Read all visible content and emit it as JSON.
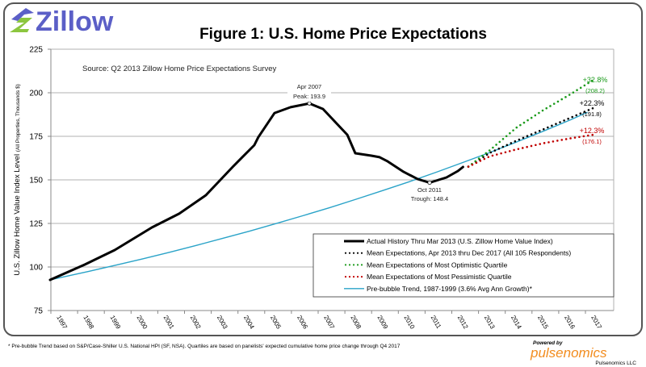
{
  "logo": {
    "text": "Zillow",
    "colors": {
      "blue": "#5b5fc7",
      "green": "#8cc63f"
    }
  },
  "footnote": "* Pre-bubble Trend based on S&P/Case-Shiller U.S. National HPI (SF, NSA).  Quartiles are based on panelists' expected cumulative home price change through Q4 2017",
  "powered": {
    "by": "Powered by",
    "brand": "pulsenomics",
    "company": "Pulsenomics LLC"
  },
  "chart_data": {
    "type": "line",
    "title": "Figure 1: U.S. Home Price Expectations",
    "source": "Source: Q2 2013 Zillow Home Price Expectations Survey",
    "ylabel": "U.S. Zillow Home Value Index Level",
    "ylabel_units": "(All Properties, Thousands $)",
    "ylim": [
      75,
      225
    ],
    "yticks": [
      75,
      100,
      125,
      150,
      175,
      200,
      225
    ],
    "xticks": [
      "1997",
      "1998",
      "1999",
      "2000",
      "2001",
      "2002",
      "2003",
      "2004",
      "2005",
      "2006",
      "2007",
      "2008",
      "2009",
      "2010",
      "2011",
      "2012",
      "2013",
      "2014",
      "2015",
      "2016",
      "2017"
    ],
    "grid": true,
    "legend_position": "bottom-right",
    "series": [
      {
        "name": "Actual History Thru Mar 2013  (U.S. Zillow Home Value Index)",
        "color": "#000000",
        "style": "solid",
        "x": [
          1997.55,
          1998.85,
          1999.97,
          2001.36,
          2002.38,
          2003.38,
          2004.38,
          2004.74,
          2005.19,
          2005.34,
          2005.95,
          2006.55,
          2007.25,
          2007.76,
          2008.27,
          2008.67,
          2008.97,
          2009.57,
          2009.88,
          2010.18,
          2010.78,
          2011.3,
          2011.75,
          2012.38,
          2012.81,
          2013.0
        ],
        "y": [
          92.6,
          101.4,
          109.7,
          122.7,
          130.6,
          141.2,
          157.4,
          163.0,
          169.9,
          174.5,
          188.4,
          191.7,
          193.9,
          190.7,
          182.4,
          175.9,
          165.3,
          163.9,
          163.0,
          160.6,
          154.6,
          150.5,
          148.4,
          151.4,
          155.1,
          157.4
        ]
      },
      {
        "name": "Mean Expectations, Apr 2013 thru Dec 2017  (All 105 Respondents)",
        "color": "#000000",
        "style": "dotted",
        "x": [
          2013.2,
          2014,
          2015,
          2016,
          2017,
          2017.96
        ],
        "y": [
          157.6,
          165.5,
          172.5,
          179.0,
          185.5,
          191.8
        ]
      },
      {
        "name": "Mean Expectations of Most Optimistic Quartile",
        "color": "#1a9a1a",
        "style": "dotted",
        "x": [
          2013.2,
          2014,
          2015,
          2016,
          2017,
          2017.96
        ],
        "y": [
          157.6,
          167.0,
          180.0,
          190.0,
          199.0,
          208.2
        ]
      },
      {
        "name": "Mean Expectations of Most Pessimistic Quartile",
        "color": "#c00000",
        "style": "dotted",
        "x": [
          2013.2,
          2014,
          2015,
          2016,
          2017,
          2017.96
        ],
        "y": [
          157.6,
          163.5,
          167.5,
          171.0,
          173.8,
          176.1
        ]
      },
      {
        "name": "Pre-bubble Trend, 1987-1999 (3.6% Avg Ann Growth)*",
        "color": "#2aa3c8",
        "style": "solid",
        "x": [
          1997.55,
          1998,
          1999,
          2000,
          2001,
          2002,
          2003,
          2004,
          2005,
          2006,
          2007,
          2008,
          2009,
          2010,
          2011,
          2012,
          2013,
          2014,
          2015,
          2016,
          2017,
          2017.64
        ],
        "y": [
          92.6,
          94.1,
          97.5,
          101.0,
          104.6,
          108.4,
          112.3,
          116.4,
          120.5,
          124.9,
          129.4,
          134.0,
          138.9,
          143.9,
          149.0,
          154.4,
          160.0,
          165.7,
          171.7,
          177.9,
          184.3,
          188.7
        ]
      }
    ],
    "annotations": [
      {
        "line1": "Apr 2007",
        "line2": "Peak: 193.9"
      },
      {
        "line1": "Oct 2011",
        "line2": "Trough: 148.4"
      },
      {
        "line1": "+32.8%",
        "line2": "(208.2)",
        "color": "#1a9a1a"
      },
      {
        "line1": "+22.3%",
        "line2": "(191.8)",
        "color": "#000000"
      },
      {
        "line1": "+12.3%",
        "line2": "(176.1)",
        "color": "#c00000"
      }
    ]
  }
}
